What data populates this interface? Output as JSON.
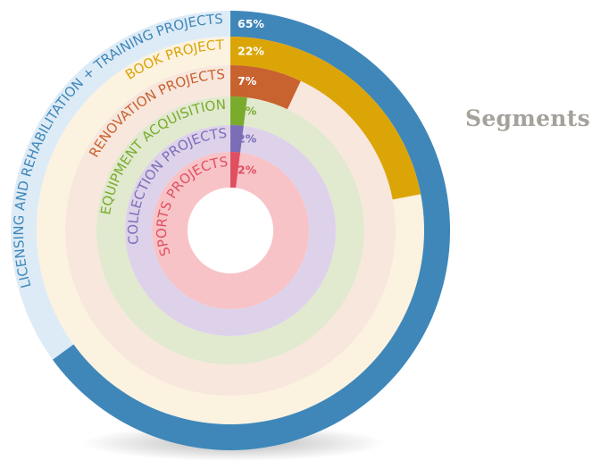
{
  "chart_data": {
    "type": "radial_bar",
    "title": "Segments",
    "series": [
      {
        "name": "LICENSING AND REHABILITATION + TRAINING PROJECTS",
        "percent_label": "65%",
        "value": 65,
        "color": "#3f87b9",
        "track_color": "#ddebf6",
        "label_color": "#3f87b9",
        "pct_color": "#ffffff"
      },
      {
        "name": "BOOK PROJECT",
        "percent_label": "22%",
        "value": 22,
        "color": "#dba508",
        "track_color": "#fcf2e0",
        "label_color": "#dba508",
        "pct_color": "#ffffff"
      },
      {
        "name": "RENOVATION PROJECTS",
        "percent_label": "7%",
        "value": 7,
        "color": "#c8622f",
        "track_color": "#f8e7dd",
        "label_color": "#c8622f",
        "pct_color": "#ffffff"
      },
      {
        "name": "EQUIPMENT ACQUISITION",
        "percent_label": "2%",
        "value": 2,
        "color": "#7aab2d",
        "track_color": "#e1e9cf",
        "label_color": "#7aab2d",
        "pct_color": "#7aab2d"
      },
      {
        "name": "COLLECTION PROJECTS",
        "percent_label": "2%",
        "value": 2,
        "color": "#7c6db7",
        "track_color": "#ddd2ea",
        "label_color": "#7c6db7",
        "pct_color": "#7c6db7"
      },
      {
        "name": "SPORTS PROJECTS",
        "percent_label": "2%",
        "value": 2,
        "color": "#df4f61",
        "track_color": "#f7c3c7",
        "label_color": "#df4f61",
        "pct_color": "#df4f61"
      }
    ]
  }
}
